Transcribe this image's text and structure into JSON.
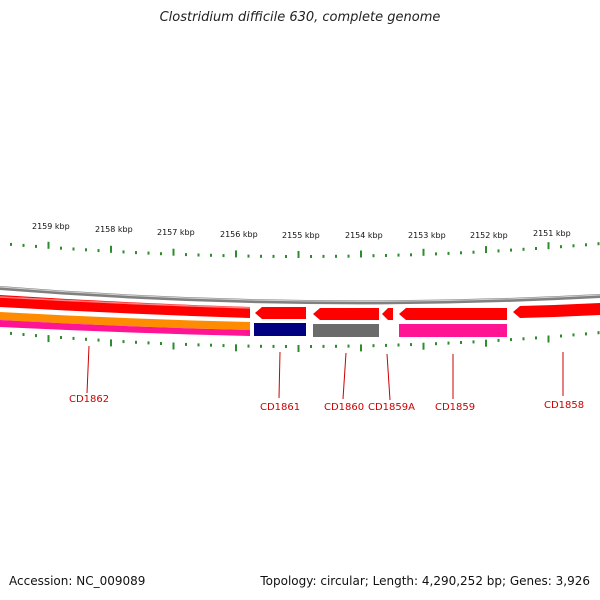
{
  "title": "Clostridium difficile 630, complete genome",
  "footer": {
    "accession": "Accession: NC_009089",
    "summary": "Topology: circular; Length: 4,290,252 bp; Genes: 3,926"
  },
  "colors": {
    "gene_red": "#ff0000",
    "tick_green": "#2e8b2e",
    "backbone_grey": "#808080",
    "label_red": "#cc0000",
    "navy": "#000080",
    "grey_gene": "#6b6b6b",
    "magenta": "#ff1493",
    "orange": "#ff8c00"
  },
  "scale": {
    "ticks": [
      {
        "label": "2159 kbp"
      },
      {
        "label": "2158 kbp"
      },
      {
        "label": "2157 kbp"
      },
      {
        "label": "2156 kbp"
      },
      {
        "label": "2155 kbp"
      },
      {
        "label": "2154 kbp"
      },
      {
        "label": "2153 kbp"
      },
      {
        "label": "2152 kbp"
      },
      {
        "label": "2151 kbp"
      }
    ]
  },
  "genes": [
    {
      "label": "CD1862"
    },
    {
      "label": "CD1861"
    },
    {
      "label": "CD1860"
    },
    {
      "label": "CD1859A"
    },
    {
      "label": "CD1859"
    },
    {
      "label": "CD1858"
    }
  ]
}
